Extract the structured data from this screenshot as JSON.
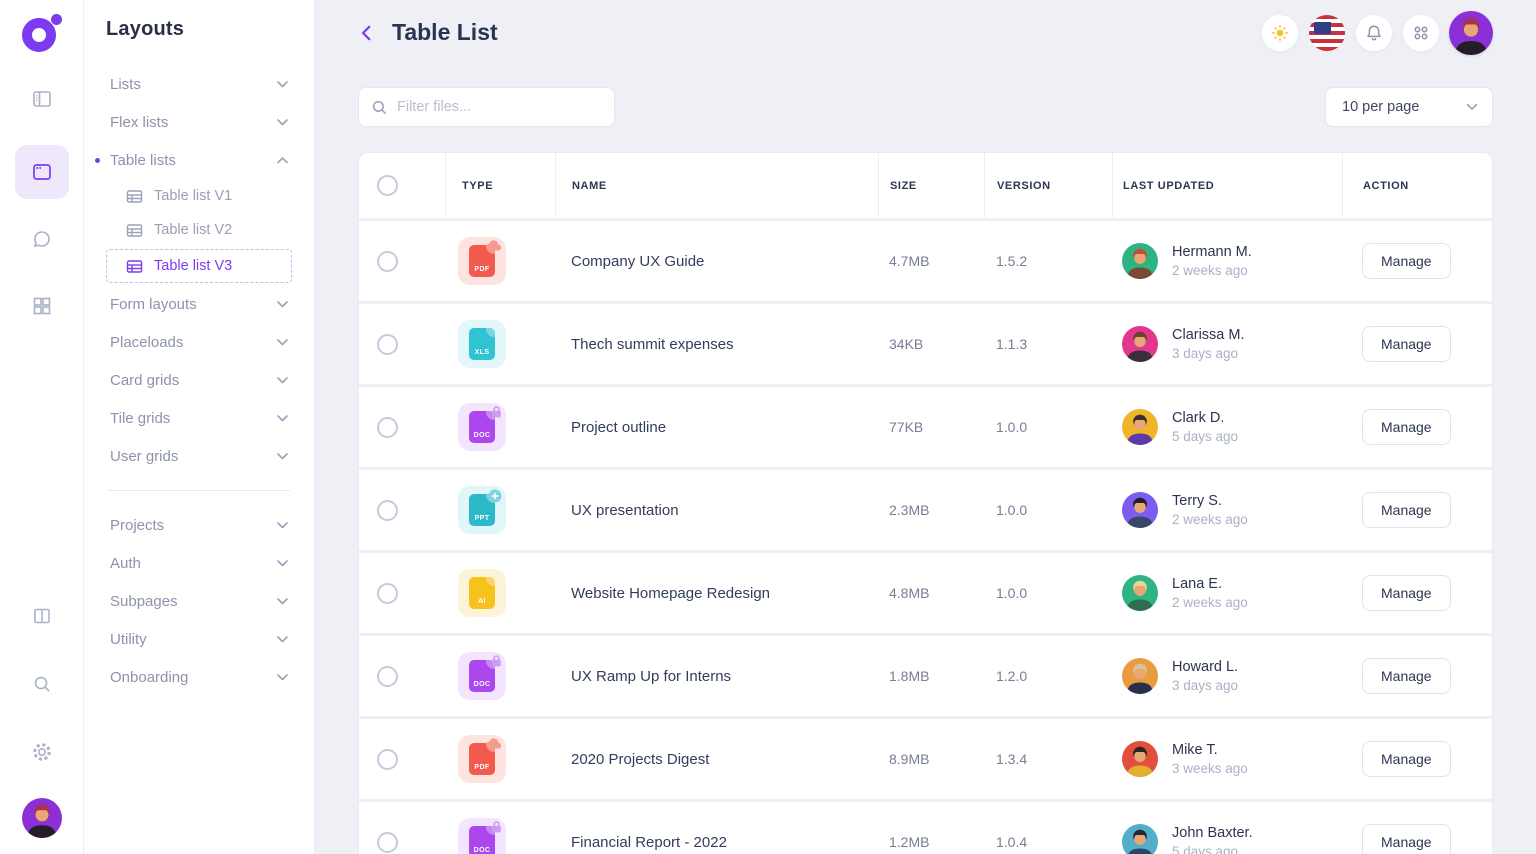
{
  "app": {
    "accent": "#7c3bf0",
    "background": "#eef0f6"
  },
  "rail": {
    "icons": [
      {
        "name": "sidebar-layout-icon",
        "active": false
      },
      {
        "name": "app-window-icon",
        "active": true
      },
      {
        "name": "chat-icon",
        "active": false
      },
      {
        "name": "grid-icon",
        "active": false
      }
    ],
    "bottom_icons": [
      {
        "name": "columns-icon"
      },
      {
        "name": "search-icon"
      },
      {
        "name": "settings-icon"
      }
    ]
  },
  "sidebar": {
    "title": "Layouts",
    "items": [
      {
        "kind": "top",
        "label": "Lists",
        "chevron": "down"
      },
      {
        "kind": "top",
        "label": "Flex lists",
        "chevron": "down"
      },
      {
        "kind": "top",
        "label": "Table lists",
        "chevron": "up",
        "bullet": true
      },
      {
        "kind": "sub",
        "label": "Table list V1"
      },
      {
        "kind": "sub",
        "label": "Table list V2"
      },
      {
        "kind": "sub",
        "label": "Table list V3",
        "selected": true
      },
      {
        "kind": "top",
        "label": "Form layouts",
        "chevron": "down"
      },
      {
        "kind": "top",
        "label": "Placeloads",
        "chevron": "down"
      },
      {
        "kind": "top",
        "label": "Card grids",
        "chevron": "down"
      },
      {
        "kind": "top",
        "label": "Tile grids",
        "chevron": "down"
      },
      {
        "kind": "top",
        "label": "User grids",
        "chevron": "down"
      },
      {
        "kind": "divider"
      },
      {
        "kind": "top",
        "label": "Projects",
        "chevron": "down"
      },
      {
        "kind": "top",
        "label": "Auth",
        "chevron": "down"
      },
      {
        "kind": "top",
        "label": "Subpages",
        "chevron": "down"
      },
      {
        "kind": "top",
        "label": "Utility",
        "chevron": "down"
      },
      {
        "kind": "top",
        "label": "Onboarding",
        "chevron": "down"
      }
    ]
  },
  "topbar": {
    "title": "Table List",
    "icons": [
      "theme-sun-icon",
      "language-us-flag",
      "notifications-bell-icon",
      "apps-grid-icon",
      "user-avatar"
    ]
  },
  "toolbar": {
    "filter_placeholder": "Filter files...",
    "per_page": "10 per page"
  },
  "file_types": {
    "pdf": {
      "label": "PDF",
      "tint": "#fde4e0",
      "file": "#f25a4e",
      "badge_color": "#f59a8c"
    },
    "xls": {
      "label": "XLS",
      "tint": "#e1f7fa",
      "file": "#30c3d4",
      "badge_color": "#8adfe8"
    },
    "doc": {
      "label": "DOC",
      "tint": "#f3e5fd",
      "file": "#ab47ec",
      "badge_color": "#cf9bf2"
    },
    "ppt": {
      "label": "PPT",
      "tint": "#e0f6f9",
      "file": "#2cbacb",
      "badge_color": "#7fd3de"
    },
    "ai": {
      "label": "AI",
      "tint": "#fdf3d8",
      "file": "#f6c21c",
      "badge_color": "#fadf7e"
    }
  },
  "user_avatar": {
    "bg": "#8b2fd6",
    "hair": "#a7344e",
    "shirt": "#241d29"
  },
  "table": {
    "columns": [
      "",
      "TYPE",
      "NAME",
      "SIZE",
      "VERSION",
      "LAST UPDATED",
      "ACTION"
    ],
    "action_label": "Manage",
    "rows": [
      {
        "type": "pdf",
        "badge": "cloud",
        "name": "Company UX Guide",
        "size": "4.7MB",
        "version": "1.5.2",
        "user": "Hermann M.",
        "updated": "2 weeks ago",
        "avatar": {
          "bg": "#2fb380",
          "hair": "#c0503a",
          "shirt": "#7a4a38"
        }
      },
      {
        "type": "xls",
        "badge": null,
        "name": "Thech summit expenses",
        "size": "34KB",
        "version": "1.1.3",
        "user": "Clarissa M.",
        "updated": "3 days ago",
        "avatar": {
          "bg": "#e2368f",
          "hair": "#6c4231",
          "shirt": "#3a2f3c"
        }
      },
      {
        "type": "doc",
        "badge": "lock",
        "name": "Project outline",
        "size": "77KB",
        "version": "1.0.0",
        "user": "Clark D.",
        "updated": "5 days ago",
        "avatar": {
          "bg": "#f0b429",
          "hair": "#3c2e2a",
          "shirt": "#5b3ba8"
        }
      },
      {
        "type": "ppt",
        "badge": "plus",
        "name": "UX presentation",
        "size": "2.3MB",
        "version": "1.0.0",
        "user": "Terry S.",
        "updated": "2 weeks ago",
        "avatar": {
          "bg": "#7d5cf0",
          "hair": "#241f26",
          "shirt": "#394867"
        }
      },
      {
        "type": "ai",
        "badge": null,
        "name": "Website Homepage Redesign",
        "size": "4.8MB",
        "version": "1.0.0",
        "user": "Lana E.",
        "updated": "2 weeks ago",
        "avatar": {
          "bg": "#2fb380",
          "hair": "#e8d29a",
          "shirt": "#2f6d4f"
        }
      },
      {
        "type": "doc",
        "badge": "lock",
        "name": "UX Ramp Up for Interns",
        "size": "1.8MB",
        "version": "1.2.0",
        "user": "Howard L.",
        "updated": "3 days ago",
        "avatar": {
          "bg": "#eb9b3f",
          "hair": "#d8c49a",
          "shirt": "#27324a"
        }
      },
      {
        "type": "pdf",
        "badge": "cloud",
        "name": "2020 Projects Digest",
        "size": "8.9MB",
        "version": "1.3.4",
        "user": "Mike T.",
        "updated": "3 weeks ago",
        "avatar": {
          "bg": "#e34f3f",
          "hair": "#2e2622",
          "shirt": "#e0b12f"
        }
      },
      {
        "type": "doc",
        "badge": "lock",
        "name": "Financial Report - 2022",
        "size": "1.2MB",
        "version": "1.0.4",
        "user": "John Baxter.",
        "updated": "5 days ago",
        "avatar": {
          "bg": "#52aec9",
          "hair": "#222a33",
          "shirt": "#27466b"
        }
      }
    ]
  }
}
